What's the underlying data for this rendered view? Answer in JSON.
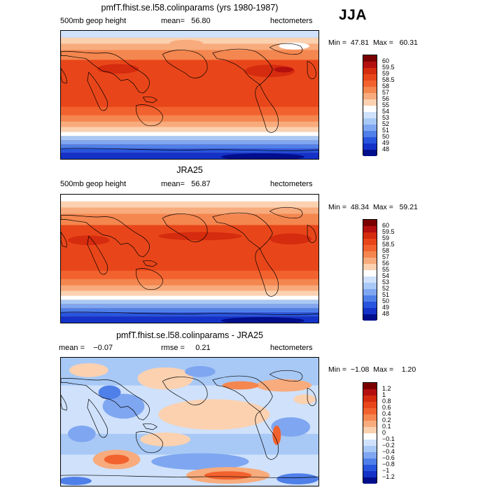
{
  "season": "JJA",
  "panels": [
    {
      "title": "pmfT.fhist.se.l58.colinparams (yrs 1980-1987)",
      "variable": "500mb geop height",
      "mean_label": "mean=",
      "mean_value": "56.80",
      "extra_label": "",
      "extra_value": "",
      "units": "hectometers",
      "min_label": "Min =",
      "min_value": "47.81",
      "max_label": "Max =",
      "max_value": "60.31"
    },
    {
      "title": "JRA25",
      "variable": "500mb geop height",
      "mean_label": "mean=",
      "mean_value": "56.87",
      "extra_label": "",
      "extra_value": "",
      "units": "hectometers",
      "min_label": "Min =",
      "min_value": "48.34",
      "max_label": "Max =",
      "max_value": "59.21"
    },
    {
      "title": "pmfT.fhist.se.l58.colinparams - JRA25",
      "variable": "",
      "mean_label": "mean =",
      "mean_value": "−0.07",
      "extra_label": "rmse =",
      "extra_value": "0.21",
      "units": "hectometers",
      "min_label": "Min =",
      "min_value": "−1.08",
      "max_label": "Max =",
      "max_value": "1.20"
    }
  ],
  "colorbars": {
    "field": {
      "labels": [
        "60",
        "59.5",
        "59",
        "58.5",
        "58",
        "57",
        "56",
        "55",
        "54",
        "53",
        "52",
        "51",
        "50",
        "49",
        "48"
      ],
      "colors": [
        "#7a0000",
        "#b30f0f",
        "#d52b0e",
        "#e8461a",
        "#f2622e",
        "#f4864f",
        "#f8ab7c",
        "#fbd1b0",
        "#ffffff",
        "#cfe1fb",
        "#a8c9f5",
        "#7fa6f0",
        "#4f7fe8",
        "#2855dd",
        "#1432c8",
        "#000e8c"
      ]
    },
    "diff": {
      "labels": [
        "1.2",
        "1",
        "0.8",
        "0.6",
        "0.4",
        "0.2",
        "0.1",
        "0",
        "−0.1",
        "−0.2",
        "−0.4",
        "−0.6",
        "−0.8",
        "−1",
        "−1.2"
      ],
      "colors": [
        "#7a0000",
        "#b30f0f",
        "#d52b0e",
        "#e8461a",
        "#f2622e",
        "#f4864f",
        "#f8ab7c",
        "#fbd1b0",
        "#ffffff",
        "#cfe1fb",
        "#a8c9f5",
        "#7fa6f0",
        "#4f7fe8",
        "#2855dd",
        "#1432c8",
        "#000e8c"
      ]
    }
  }
}
